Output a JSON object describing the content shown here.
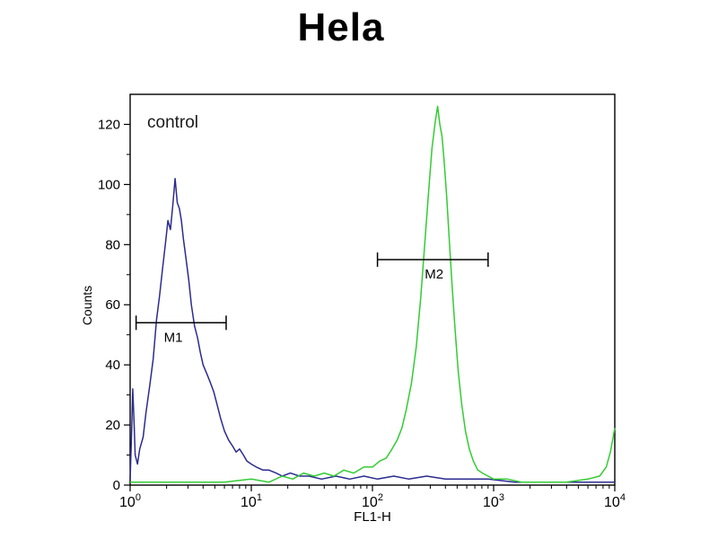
{
  "chart_data": {
    "type": "line",
    "title": "Hela",
    "annotation": "control",
    "xlabel": "FL1-H",
    "ylabel": "Counts",
    "x_scale": "log",
    "xlim": [
      1,
      10000
    ],
    "ylim": [
      0,
      130
    ],
    "yticks": [
      0,
      20,
      40,
      60,
      80,
      100,
      120
    ],
    "xtick_decades": [
      0,
      1,
      2,
      3,
      4
    ],
    "grid": "off",
    "legend": "none",
    "plot_background": "#ffffff",
    "axis_color": "#000000",
    "series": [
      {
        "name": "control (blue)",
        "color": "#2b2b8f",
        "points": [
          [
            1.0,
            2
          ],
          [
            1.03,
            18
          ],
          [
            1.05,
            32
          ],
          [
            1.08,
            20
          ],
          [
            1.1,
            10
          ],
          [
            1.15,
            7
          ],
          [
            1.2,
            12
          ],
          [
            1.28,
            16
          ],
          [
            1.35,
            24
          ],
          [
            1.45,
            33
          ],
          [
            1.55,
            42
          ],
          [
            1.65,
            55
          ],
          [
            1.75,
            63
          ],
          [
            1.85,
            72
          ],
          [
            1.95,
            80
          ],
          [
            2.05,
            88
          ],
          [
            2.15,
            85
          ],
          [
            2.25,
            93
          ],
          [
            2.35,
            102
          ],
          [
            2.45,
            94
          ],
          [
            2.55,
            92
          ],
          [
            2.65,
            88
          ],
          [
            2.75,
            82
          ],
          [
            2.9,
            75
          ],
          [
            3.05,
            68
          ],
          [
            3.2,
            60
          ],
          [
            3.4,
            53
          ],
          [
            3.6,
            49
          ],
          [
            3.8,
            44
          ],
          [
            4.0,
            40
          ],
          [
            4.3,
            37
          ],
          [
            4.6,
            34
          ],
          [
            4.9,
            31
          ],
          [
            5.2,
            27
          ],
          [
            5.6,
            22
          ],
          [
            6.0,
            18
          ],
          [
            6.5,
            15
          ],
          [
            7.0,
            13
          ],
          [
            7.5,
            11
          ],
          [
            8.0,
            12
          ],
          [
            8.6,
            10
          ],
          [
            9.2,
            8
          ],
          [
            10.0,
            7
          ],
          [
            11.0,
            6
          ],
          [
            12.5,
            5
          ],
          [
            14.0,
            5
          ],
          [
            16.0,
            4
          ],
          [
            18.0,
            3
          ],
          [
            21.0,
            4
          ],
          [
            25.0,
            3
          ],
          [
            30.0,
            3
          ],
          [
            38.0,
            2
          ],
          [
            50.0,
            3
          ],
          [
            65.0,
            2
          ],
          [
            85.0,
            3
          ],
          [
            110,
            2
          ],
          [
            150,
            3
          ],
          [
            200,
            2
          ],
          [
            280,
            3
          ],
          [
            400,
            2
          ],
          [
            600,
            2
          ],
          [
            900,
            2
          ],
          [
            1500,
            1
          ],
          [
            3000,
            1
          ],
          [
            6000,
            1
          ],
          [
            10000,
            1
          ]
        ]
      },
      {
        "name": "green",
        "color": "#33cc33",
        "points": [
          [
            1.0,
            1
          ],
          [
            3.0,
            1
          ],
          [
            6.0,
            1
          ],
          [
            10,
            2
          ],
          [
            14,
            1
          ],
          [
            18,
            3
          ],
          [
            22,
            2
          ],
          [
            27,
            4
          ],
          [
            33,
            3
          ],
          [
            40,
            4
          ],
          [
            48,
            3
          ],
          [
            58,
            5
          ],
          [
            70,
            4
          ],
          [
            85,
            6
          ],
          [
            100,
            6
          ],
          [
            115,
            8
          ],
          [
            130,
            9
          ],
          [
            145,
            12
          ],
          [
            160,
            15
          ],
          [
            175,
            19
          ],
          [
            190,
            25
          ],
          [
            210,
            34
          ],
          [
            230,
            46
          ],
          [
            250,
            62
          ],
          [
            270,
            80
          ],
          [
            290,
            97
          ],
          [
            310,
            112
          ],
          [
            330,
            121
          ],
          [
            345,
            126
          ],
          [
            360,
            120
          ],
          [
            375,
            116
          ],
          [
            390,
            108
          ],
          [
            410,
            96
          ],
          [
            430,
            82
          ],
          [
            455,
            66
          ],
          [
            480,
            52
          ],
          [
            510,
            38
          ],
          [
            545,
            27
          ],
          [
            585,
            18
          ],
          [
            630,
            12
          ],
          [
            680,
            8
          ],
          [
            740,
            5
          ],
          [
            810,
            4
          ],
          [
            900,
            3
          ],
          [
            1000,
            2
          ],
          [
            1300,
            2
          ],
          [
            1700,
            1
          ],
          [
            2500,
            1
          ],
          [
            4000,
            1
          ],
          [
            6000,
            2
          ],
          [
            7500,
            3
          ],
          [
            8500,
            6
          ],
          [
            9200,
            11
          ],
          [
            9700,
            16
          ],
          [
            10000,
            19
          ]
        ]
      }
    ],
    "gates": [
      {
        "label": "M1",
        "x1": 1.12,
        "x2": 6.2,
        "y": 54,
        "label_x": 1.9
      },
      {
        "label": "M2",
        "x1": 110,
        "x2": 900,
        "y": 75,
        "label_x": 270
      }
    ]
  }
}
